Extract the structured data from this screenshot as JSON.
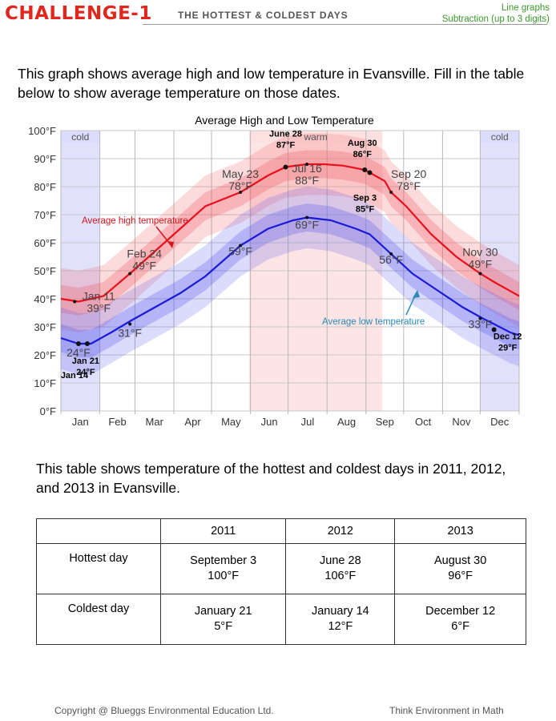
{
  "header": {
    "challenge": "CHALLENGE-1",
    "title": "THE HOTTEST & COLDEST DAYS",
    "topic1": "Line graphs",
    "topic2": "Subtraction (up to 3 digits)"
  },
  "intro_text": "This graph shows average high and low temperature in Evansville.  Fill in the table below to show average temperature on those dates.",
  "chart_data": {
    "type": "line",
    "title": "Average High and Low Temperature",
    "x_ticks": [
      "Jan",
      "Feb",
      "Mar",
      "Apr",
      "May",
      "Jun",
      "Jul",
      "Aug",
      "Sep",
      "Oct",
      "Nov",
      "Dec"
    ],
    "y_ticks": [
      "0°F",
      "10°F",
      "20°F",
      "30°F",
      "40°F",
      "50°F",
      "60°F",
      "70°F",
      "80°F",
      "90°F",
      "100°F"
    ],
    "ylim": [
      0,
      100
    ],
    "season_labels": [
      "cold",
      "warm",
      "cold"
    ],
    "series": [
      {
        "name": "Average high temperature",
        "color": "#e8101a",
        "label_color": "#d4151d",
        "points": [
          [
            0,
            40
          ],
          [
            14,
            39
          ],
          [
            34,
            41
          ],
          [
            55,
            49
          ],
          [
            75,
            57
          ],
          [
            95,
            65
          ],
          [
            115,
            73
          ],
          [
            143,
            78
          ],
          [
            165,
            84
          ],
          [
            179,
            87
          ],
          [
            196,
            88
          ],
          [
            210,
            88
          ],
          [
            225,
            87.5
          ],
          [
            242,
            86
          ],
          [
            246,
            85
          ],
          [
            258,
            82
          ],
          [
            263,
            78
          ],
          [
            275,
            73
          ],
          [
            295,
            63
          ],
          [
            315,
            55
          ],
          [
            334,
            49
          ],
          [
            345,
            46
          ],
          [
            365,
            41
          ]
        ]
      },
      {
        "name": "Average low temperature",
        "color": "#1a1ad8",
        "label_color": "#2a8ab8",
        "points": [
          [
            0,
            26
          ],
          [
            14,
            24
          ],
          [
            24,
            24
          ],
          [
            40,
            28
          ],
          [
            55,
            32
          ],
          [
            75,
            37
          ],
          [
            95,
            42
          ],
          [
            115,
            48
          ],
          [
            143,
            59
          ],
          [
            165,
            65
          ],
          [
            185,
            68
          ],
          [
            196,
            69
          ],
          [
            215,
            68
          ],
          [
            235,
            65
          ],
          [
            246,
            63
          ],
          [
            263,
            56
          ],
          [
            280,
            49
          ],
          [
            300,
            43
          ],
          [
            320,
            37
          ],
          [
            336,
            33
          ],
          [
            345,
            31
          ],
          [
            358,
            28
          ],
          [
            365,
            27
          ]
        ]
      }
    ],
    "annotations": [
      {
        "label": "Jan 11",
        "sub": "39°F",
        "day": 11,
        "temp": 39,
        "style": "normal"
      },
      {
        "label": "Feb 24",
        "sub": "49°F",
        "day": 55,
        "temp": 49,
        "style": "normal"
      },
      {
        "label": "May 23",
        "sub": "78°F",
        "day": 143,
        "temp": 78,
        "style": "normal"
      },
      {
        "label": "Jul 16",
        "sub": "88°F",
        "day": 196,
        "temp": 88,
        "style": "normal"
      },
      {
        "label": "Sep 20",
        "sub": "78°F",
        "day": 263,
        "temp": 78,
        "style": "normal"
      },
      {
        "label": "Nov 30",
        "sub": "49°F",
        "day": 334,
        "temp": 49,
        "style": "normal"
      },
      {
        "label": "24°F",
        "day": 14,
        "temp": 24,
        "style": "normal"
      },
      {
        "label": "31°F",
        "day": 55,
        "temp": 31,
        "style": "normal"
      },
      {
        "label": "59°F",
        "day": 143,
        "temp": 59,
        "style": "normal"
      },
      {
        "label": "69°F",
        "day": 196,
        "temp": 69,
        "style": "normal"
      },
      {
        "label": "56°F",
        "day": 263,
        "temp": 56,
        "style": "normal"
      },
      {
        "label": "33°F",
        "day": 334,
        "temp": 33,
        "style": "normal"
      },
      {
        "label": "June 28",
        "sub": "87°F",
        "day": 179,
        "temp": 87,
        "style": "bold"
      },
      {
        "label": "Aug 30",
        "sub": "86°F",
        "day": 242,
        "temp": 86,
        "style": "bold"
      },
      {
        "label": "Sep 3",
        "sub": "85°F",
        "day": 246,
        "temp": 85,
        "style": "bold"
      },
      {
        "label": "Jan 21",
        "sub": "24°F",
        "day": 21,
        "temp": 24,
        "style": "bold"
      },
      {
        "label": "Jan 14",
        "day": 14,
        "temp": 24,
        "style": "bold"
      },
      {
        "label": "Dec 12",
        "sub": "29°F",
        "day": 345,
        "temp": 29,
        "style": "bold"
      }
    ]
  },
  "table_intro": "This table shows temperature of the hottest and coldest days in 2011, 2012, and 2013 in Evansville.",
  "table": {
    "columns": [
      "",
      "2011",
      "2012",
      "2013"
    ],
    "rows": [
      {
        "label": "Hottest day",
        "cells": [
          {
            "date": "September 3",
            "temp": "100°F"
          },
          {
            "date": "June 28",
            "temp": "106°F"
          },
          {
            "date": "August 30",
            "temp": "96°F"
          }
        ]
      },
      {
        "label": "Coldest day",
        "cells": [
          {
            "date": "January 21",
            "temp": "5°F"
          },
          {
            "date": "January 14",
            "temp": "12°F"
          },
          {
            "date": "December 12",
            "temp": "6°F"
          }
        ]
      }
    ]
  },
  "footer": {
    "copyright": "Copyright @ Blueggs Environmental Education Ltd.",
    "tagline": "Think Environment in Math"
  }
}
